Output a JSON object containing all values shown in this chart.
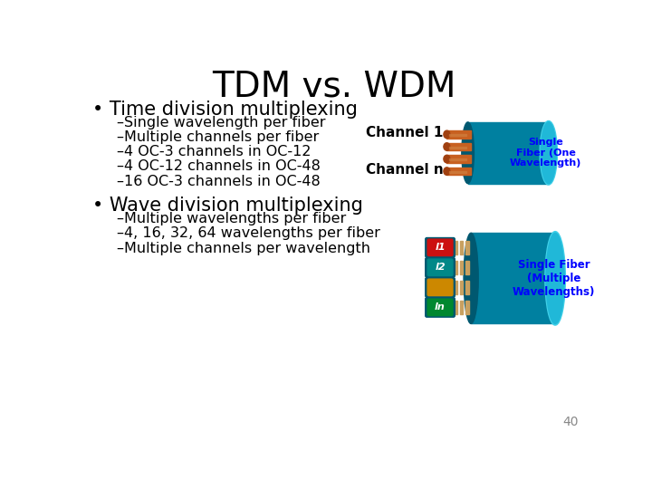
{
  "title": "TDM vs. WDM",
  "title_fontsize": 28,
  "background_color": "#ffffff",
  "text_color": "#000000",
  "bullet1_header": "• Time division multiplexing",
  "bullet1_items": [
    "–Single wavelength per fiber",
    "–Multiple channels per fiber",
    "–4 OC-3 channels in OC-12",
    "–4 OC-12 channels in OC-48",
    "–16 OC-3 channels in OC-48"
  ],
  "bullet2_header": "• Wave division multiplexing",
  "bullet2_items": [
    "–Multiple wavelengths per fiber",
    "–4, 16, 32, 64 wavelengths per fiber",
    "–Multiple channels per wavelength"
  ],
  "page_number": "40",
  "tdm_label1": "Channel 1",
  "tdm_label2": "Channel n",
  "tdm_fiber_label": "Single\nFiber (One\nWavelength)",
  "wdm_fiber_label": "Single Fiber\n(Multiple\nWavelengths)",
  "teal_body": "#0080A0",
  "teal_front": "#20B8D8",
  "teal_back": "#005870",
  "teal_rim": "#40D0E8",
  "orange_cable": "#C86020",
  "orange_cap": "#A04010",
  "orange_stripe": "#D08040",
  "red_cable": "#CC1010",
  "teal_cable": "#008888",
  "gold_cable": "#CC8800",
  "green_cable": "#008830",
  "wdm_stripe": "#C8A060",
  "label_blue": "#0000CC"
}
